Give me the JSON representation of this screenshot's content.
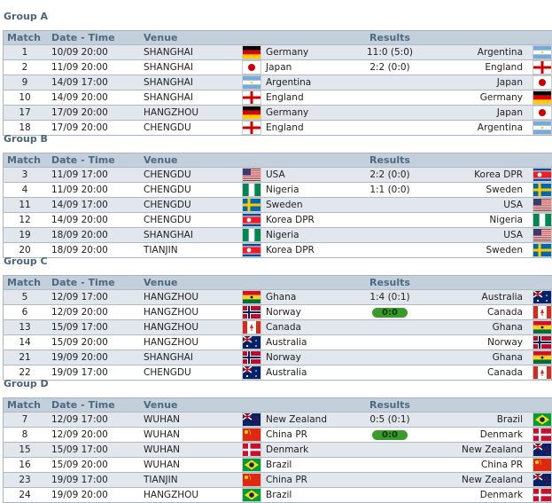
{
  "headers": {
    "match": "Match",
    "date": "Date - Time",
    "venue": "Venue",
    "results": "Results"
  },
  "groups": [
    {
      "title": "Group A",
      "matches": [
        {
          "no": "1",
          "date": "10/09 20:00",
          "venue": "SHANGHAI",
          "home": "Germany",
          "home_flag": "germany",
          "result": "11:0 (5:0)",
          "away": "Argentina",
          "away_flag": "argentina"
        },
        {
          "no": "2",
          "date": "11/09 20:00",
          "venue": "SHANGHAI",
          "home": "Japan",
          "home_flag": "japan",
          "result": "2:2 (0:0)",
          "away": "England",
          "away_flag": "england"
        },
        {
          "no": "9",
          "date": "14/09 17:00",
          "venue": "SHANGHAI",
          "home": "Argentina",
          "home_flag": "argentina",
          "result": "",
          "away": "Japan",
          "away_flag": "japan"
        },
        {
          "no": "10",
          "date": "14/09 20:00",
          "venue": "SHANGHAI",
          "home": "England",
          "home_flag": "england",
          "result": "",
          "away": "Germany",
          "away_flag": "germany"
        },
        {
          "no": "17",
          "date": "17/09 20:00",
          "venue": "HANGZHOU",
          "home": "Germany",
          "home_flag": "germany",
          "result": "",
          "away": "Japan",
          "away_flag": "japan"
        },
        {
          "no": "18",
          "date": "17/09 20:00",
          "venue": "CHENGDU",
          "home": "England",
          "home_flag": "england",
          "result": "",
          "away": "Argentina",
          "away_flag": "argentina"
        }
      ]
    },
    {
      "title": "Group B",
      "matches": [
        {
          "no": "3",
          "date": "11/09 17:00",
          "venue": "CHENGDU",
          "home": "USA",
          "home_flag": "usa",
          "result": "2:2 (0:0)",
          "away": "Korea DPR",
          "away_flag": "korea_dpr"
        },
        {
          "no": "4",
          "date": "11/09 20:00",
          "venue": "CHENGDU",
          "home": "Nigeria",
          "home_flag": "nigeria",
          "result": "1:1 (0:0)",
          "away": "Sweden",
          "away_flag": "sweden"
        },
        {
          "no": "11",
          "date": "14/09 17:00",
          "venue": "CHENGDU",
          "home": "Sweden",
          "home_flag": "sweden",
          "result": "",
          "away": "USA",
          "away_flag": "usa"
        },
        {
          "no": "12",
          "date": "14/09 20:00",
          "venue": "CHENGDU",
          "home": "Korea DPR",
          "home_flag": "korea_dpr",
          "result": "",
          "away": "Nigeria",
          "away_flag": "nigeria"
        },
        {
          "no": "19",
          "date": "18/09 20:00",
          "venue": "SHANGHAI",
          "home": "Nigeria",
          "home_flag": "nigeria",
          "result": "",
          "away": "USA",
          "away_flag": "usa"
        },
        {
          "no": "20",
          "date": "18/09 20:00",
          "venue": "TIANJIN",
          "home": "Korea DPR",
          "home_flag": "korea_dpr",
          "result": "",
          "away": "Sweden",
          "away_flag": "sweden"
        }
      ]
    },
    {
      "title": "Group C",
      "matches": [
        {
          "no": "5",
          "date": "12/09 17:00",
          "venue": "HANGZHOU",
          "home": "Ghana",
          "home_flag": "ghana",
          "result": "1:4 (0:1)",
          "away": "Australia",
          "away_flag": "australia"
        },
        {
          "no": "6",
          "date": "12/09 20:00",
          "venue": "HANGZHOU",
          "home": "Norway",
          "home_flag": "norway",
          "result": "0:0",
          "live": true,
          "away": "Canada",
          "away_flag": "canada"
        },
        {
          "no": "13",
          "date": "15/09 17:00",
          "venue": "HANGZHOU",
          "home": "Canada",
          "home_flag": "canada",
          "result": "",
          "away": "Ghana",
          "away_flag": "ghana"
        },
        {
          "no": "14",
          "date": "15/09 20:00",
          "venue": "HANGZHOU",
          "home": "Australia",
          "home_flag": "australia",
          "result": "",
          "away": "Norway",
          "away_flag": "norway"
        },
        {
          "no": "21",
          "date": "19/09 20:00",
          "venue": "SHANGHAI",
          "home": "Norway",
          "home_flag": "norway",
          "result": "",
          "away": "Ghana",
          "away_flag": "ghana"
        },
        {
          "no": "22",
          "date": "19/09 17:00",
          "venue": "CHENGDU",
          "home": "Australia",
          "home_flag": "australia",
          "result": "",
          "away": "Canada",
          "away_flag": "canada"
        }
      ]
    },
    {
      "title": "Group D",
      "matches": [
        {
          "no": "7",
          "date": "12/09 17:00",
          "venue": "WUHAN",
          "home": "New Zealand",
          "home_flag": "new_zealand",
          "result": "0:5 (0:1)",
          "away": "Brazil",
          "away_flag": "brazil"
        },
        {
          "no": "8",
          "date": "12/09 20:00",
          "venue": "WUHAN",
          "home": "China PR",
          "home_flag": "china",
          "result": "0:0",
          "live": true,
          "away": "Denmark",
          "away_flag": "denmark"
        },
        {
          "no": "15",
          "date": "15/09 17:00",
          "venue": "WUHAN",
          "home": "Denmark",
          "home_flag": "denmark",
          "result": "",
          "away": "New Zealand",
          "away_flag": "new_zealand"
        },
        {
          "no": "16",
          "date": "15/09 20:00",
          "venue": "WUHAN",
          "home": "Brazil",
          "home_flag": "brazil",
          "result": "",
          "away": "China PR",
          "away_flag": "china"
        },
        {
          "no": "23",
          "date": "19/09 17:00",
          "venue": "TIANJIN",
          "home": "China PR",
          "home_flag": "china",
          "result": "",
          "away": "New Zealand",
          "away_flag": "new_zealand"
        },
        {
          "no": "24",
          "date": "19/09 20:00",
          "venue": "HANGZHOU",
          "home": "Brazil",
          "home_flag": "brazil",
          "result": "",
          "away": "Denmark",
          "away_flag": "denmark"
        }
      ]
    }
  ]
}
